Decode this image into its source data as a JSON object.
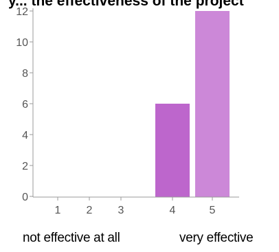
{
  "chart_data": {
    "type": "bar",
    "title": "y... the effectiveness of the project",
    "categories": [
      "1",
      "2",
      "3",
      "4",
      "5"
    ],
    "values": [
      0,
      0,
      0,
      6,
      12
    ],
    "ylim": [
      0,
      12
    ],
    "yticks": [
      0,
      2,
      4,
      6,
      8,
      10,
      12
    ],
    "grid": false,
    "bar_colors": {
      "4": "#bd66cc",
      "5": "#cc88d8"
    },
    "axis_color": "#9a9a9a",
    "tick_label_color": "#555555",
    "scale_labels": {
      "min": "not effective at all",
      "max": "very effective"
    }
  }
}
